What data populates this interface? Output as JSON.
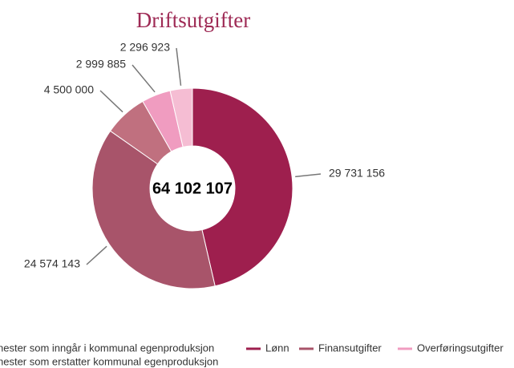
{
  "chart_data": {
    "type": "donut",
    "title": "Driftsutgifter",
    "total": "64 102 107",
    "categories": [
      "nester som inngår i kommunal egenproduksjon",
      "Lønn",
      "Finansutgifter",
      "Overføringsutgifter",
      "nester som erstatter kommunal egenproduksjon"
    ],
    "values": [
      4500000,
      29731156,
      24574143,
      2999885,
      2296923
    ],
    "value_labels": [
      "4 500 000",
      "29 731 156",
      "24 574 143",
      "2 999 885",
      "2 296 923"
    ],
    "colors": [
      "#c0707f",
      "#9e1f4e",
      "#a8546a",
      "#f09cc0",
      "#f5bdd3"
    ],
    "slice_order": [
      1,
      2,
      0,
      3,
      4
    ]
  }
}
